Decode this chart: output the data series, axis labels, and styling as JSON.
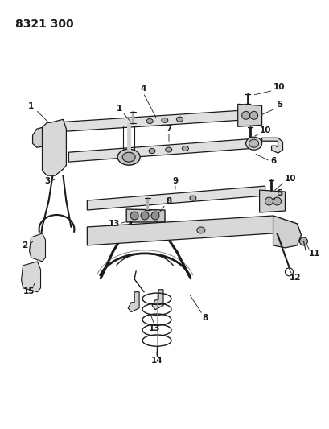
{
  "title": "8321 300",
  "bg_color": "#ffffff",
  "line_color": "#1a1a1a",
  "title_fontsize": 10,
  "label_fontsize": 7.5,
  "fig_width": 4.1,
  "fig_height": 5.33,
  "dpi": 100
}
